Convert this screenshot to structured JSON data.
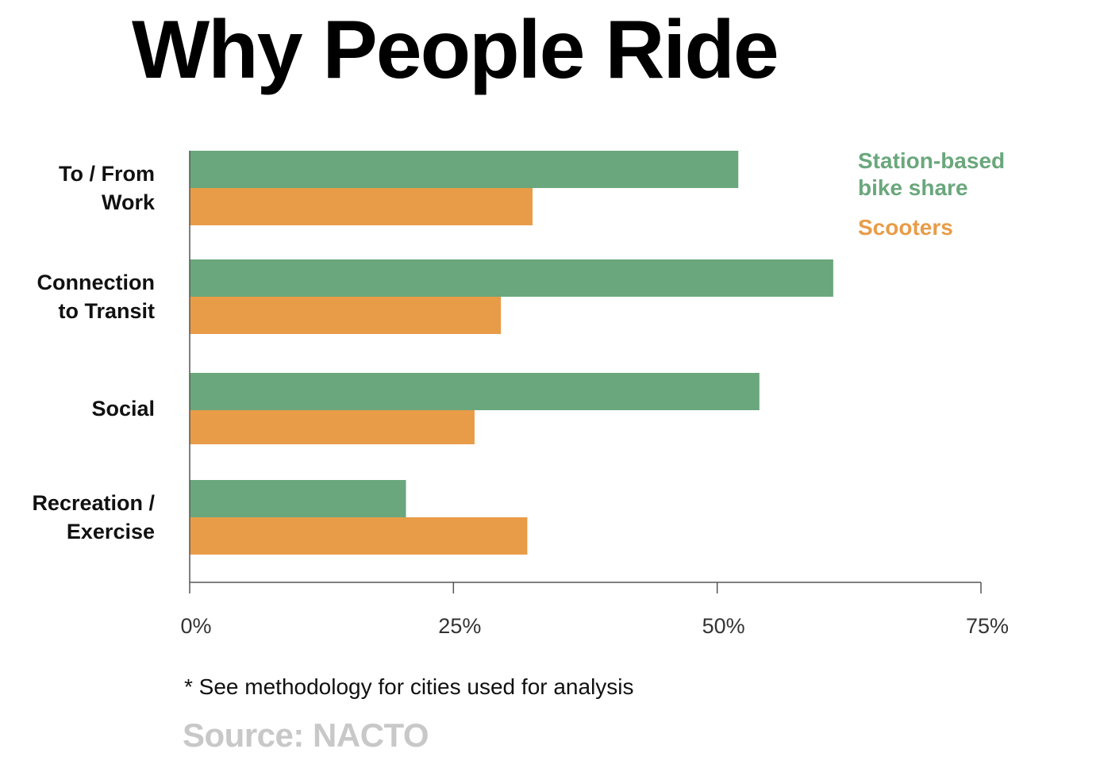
{
  "title": "Why People Ride",
  "footnote": "* See methodology for cities used for analysis",
  "source": "Source: NACTO",
  "colors": {
    "bike_share": "#6aa77c",
    "scooters": "#e89c48",
    "axis": "#555555"
  },
  "chart_data": {
    "type": "bar",
    "orientation": "horizontal",
    "title": "Why People Ride",
    "categories": [
      [
        "To / From",
        "Work"
      ],
      [
        "Connection",
        "to Transit"
      ],
      [
        "Social"
      ],
      [
        "Recreation /",
        "Exercise"
      ]
    ],
    "series": [
      {
        "name": "Station-based bike share",
        "legend_lines": [
          "Station-based",
          "bike share"
        ],
        "color": "#6aa77c",
        "values": [
          52,
          61,
          54,
          20.5
        ]
      },
      {
        "name": "Scooters",
        "legend_lines": [
          "Scooters"
        ],
        "color": "#e89c48",
        "values": [
          32.5,
          29.5,
          27,
          32
        ]
      }
    ],
    "xlim": [
      0,
      75
    ],
    "xticks": [
      0,
      25,
      50,
      75
    ],
    "xtick_labels": [
      "0%",
      "25%",
      "50%",
      "75%"
    ],
    "legend_position": "top-right",
    "grid": false
  }
}
